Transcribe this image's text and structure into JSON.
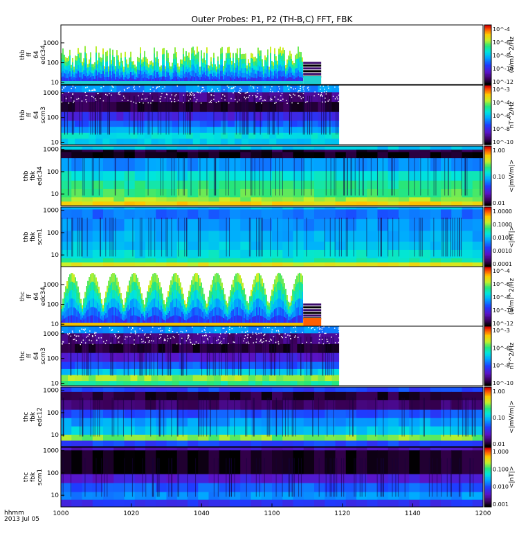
{
  "chart_data": {
    "type": "heatmap",
    "title": "Outer Probes: P1, P2 (TH-B,C) FFT, FBK",
    "x_ticks": [
      "1000",
      "1020",
      "1040",
      "1100",
      "1120",
      "1140",
      "1200"
    ],
    "x_range": [
      "10:00",
      "12:00"
    ],
    "x_labels": [
      "hhmm",
      "2013 Jul 05"
    ],
    "panels": [
      {
        "ylabel": [
          "thb",
          "ff",
          "64",
          "edc34"
        ],
        "y_ticks": [
          "10",
          "100",
          "1000"
        ],
        "y_range_hz": [
          8,
          8000
        ],
        "data_end_time": "11:14",
        "cb_ticks": [
          "10^-4",
          "10^-6",
          "10^-8",
          "10^-10",
          "10^-12"
        ],
        "cb_label": "(V/m)^2/Hz",
        "pattern": "spiky"
      },
      {
        "ylabel": [
          "thb",
          "ff",
          "64",
          "scm3"
        ],
        "y_ticks": [
          "10",
          "100",
          "1000"
        ],
        "y_range_hz": [
          8,
          2000
        ],
        "data_end_time": "11:19",
        "cb_ticks": [
          "10^-3",
          "10^-4",
          "10^-6",
          "10^-8",
          "10^-10"
        ],
        "cb_label": "nT^2/Hz",
        "pattern": "bands_scm"
      },
      {
        "ylabel": [
          "thb",
          "fbk",
          "edc34"
        ],
        "y_ticks": [
          "10",
          "100",
          "1000"
        ],
        "y_range_hz": [
          3,
          1400
        ],
        "data_end_time": "12:00",
        "cb_ticks": [
          "1.00",
          "0.10",
          "0.01"
        ],
        "cb_label": "<|mV/m|>",
        "pattern": "bands_fbk_e"
      },
      {
        "ylabel": [
          "thb",
          "fbk",
          "scm1"
        ],
        "y_ticks": [
          "10",
          "100",
          "1000"
        ],
        "y_range_hz": [
          3,
          1400
        ],
        "data_end_time": "12:00",
        "cb_ticks": [
          "1.0000",
          "0.1000",
          "0.0100",
          "0.0010",
          "0.0001"
        ],
        "cb_label": "<|nT|>",
        "pattern": "bands_fbk_b"
      },
      {
        "ylabel": [
          "thc",
          "ff",
          "64",
          "edc34"
        ],
        "y_ticks": [
          "10",
          "100",
          "1000"
        ],
        "y_range_hz": [
          8,
          8000
        ],
        "data_end_time": "11:14",
        "cb_ticks": [
          "10^-4",
          "10^-6",
          "10^-8",
          "10^-10",
          "10^-12"
        ],
        "cb_label": "(V/m)^2/Hz",
        "pattern": "arches"
      },
      {
        "ylabel": [
          "thc",
          "ff",
          "64",
          "scm3"
        ],
        "y_ticks": [
          "10",
          "100",
          "1000"
        ],
        "y_range_hz": [
          8,
          2000
        ],
        "data_end_time": "11:19",
        "cb_ticks": [
          "10^-3",
          "10^-6",
          "10^-8",
          "10^-10"
        ],
        "cb_label": "nT^2/Hz",
        "pattern": "bands_scm2"
      },
      {
        "ylabel": [
          "thc",
          "fbk",
          "edc12"
        ],
        "y_ticks": [
          "10",
          "100",
          "1000"
        ],
        "y_range_hz": [
          3,
          1400
        ],
        "data_end_time": "12:00",
        "cb_ticks": [
          "1.00",
          "0.10",
          "0.01"
        ],
        "cb_label": "<|mV/m|>",
        "pattern": "bands_fbk_e2"
      },
      {
        "ylabel": [
          "thc",
          "fbk",
          "scm1"
        ],
        "y_ticks": [
          "10",
          "100",
          "1000"
        ],
        "y_range_hz": [
          3,
          1400
        ],
        "data_end_time": "12:00",
        "cb_ticks": [
          "1.000",
          "0.100",
          "0.010",
          "0.001"
        ],
        "cb_label": "<|nT|>",
        "pattern": "bands_fbk_b2"
      }
    ]
  }
}
